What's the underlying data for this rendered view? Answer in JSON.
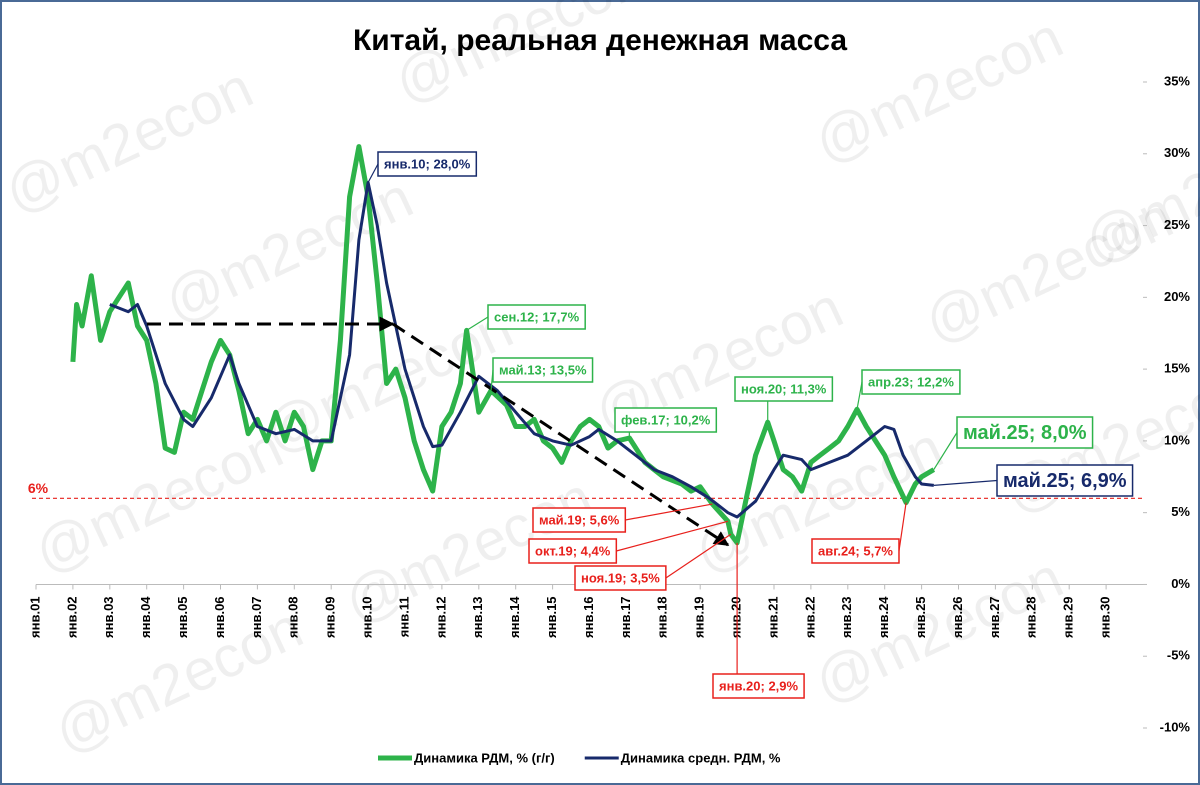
{
  "chart_data": {
    "type": "line",
    "title": "Китай, реальная денежная масса",
    "watermark": "@m2econ",
    "xlim": [
      2001,
      2031
    ],
    "xticks": [
      {
        "value": 2001,
        "label": "янв.01"
      },
      {
        "value": 2002,
        "label": "янв.02"
      },
      {
        "value": 2003,
        "label": "янв.03"
      },
      {
        "value": 2004,
        "label": "янв.04"
      },
      {
        "value": 2005,
        "label": "янв.05"
      },
      {
        "value": 2006,
        "label": "янв.06"
      },
      {
        "value": 2007,
        "label": "янв.07"
      },
      {
        "value": 2008,
        "label": "янв.08"
      },
      {
        "value": 2009,
        "label": "янв.09"
      },
      {
        "value": 2010,
        "label": "янв.10"
      },
      {
        "value": 2011,
        "label": "янв.11"
      },
      {
        "value": 2012,
        "label": "янв.12"
      },
      {
        "value": 2013,
        "label": "янв.13"
      },
      {
        "value": 2014,
        "label": "янв.14"
      },
      {
        "value": 2015,
        "label": "янв.15"
      },
      {
        "value": 2016,
        "label": "янв.16"
      },
      {
        "value": 2017,
        "label": "янв.17"
      },
      {
        "value": 2018,
        "label": "янв.18"
      },
      {
        "value": 2019,
        "label": "янв.19"
      },
      {
        "value": 2020,
        "label": "янв.20"
      },
      {
        "value": 2021,
        "label": "янв.21"
      },
      {
        "value": 2022,
        "label": "янв.22"
      },
      {
        "value": 2023,
        "label": "янв.23"
      },
      {
        "value": 2024,
        "label": "янв.24"
      },
      {
        "value": 2025,
        "label": "янв.25"
      },
      {
        "value": 2026,
        "label": "янв.26"
      },
      {
        "value": 2027,
        "label": "янв.27"
      },
      {
        "value": 2028,
        "label": "янв.28"
      },
      {
        "value": 2029,
        "label": "янв.29"
      },
      {
        "value": 2030,
        "label": "янв.30"
      }
    ],
    "ylim": [
      -10,
      35
    ],
    "yticks": [
      {
        "value": -10,
        "label": "-10%"
      },
      {
        "value": -5,
        "label": "-5%"
      },
      {
        "value": 0,
        "label": "0%"
      },
      {
        "value": 5,
        "label": "5%"
      },
      {
        "value": 10,
        "label": "10%"
      },
      {
        "value": 15,
        "label": "15%"
      },
      {
        "value": 20,
        "label": "20%"
      },
      {
        "value": 25,
        "label": "25%"
      },
      {
        "value": 30,
        "label": "30%"
      },
      {
        "value": 35,
        "label": "35%"
      }
    ],
    "reference_line": {
      "value": 6,
      "label": "6%",
      "color": "#e8201c"
    },
    "series": [
      {
        "name": "Динамика РДМ, % (г/г)",
        "color": "#2db34a",
        "x": [
          2002.0,
          2002.1,
          2002.25,
          2002.5,
          2002.75,
          2003.0,
          2003.25,
          2003.5,
          2003.75,
          2004.0,
          2004.25,
          2004.5,
          2004.75,
          2005.0,
          2005.25,
          2005.5,
          2005.75,
          2006.0,
          2006.25,
          2006.5,
          2006.75,
          2007.0,
          2007.25,
          2007.5,
          2007.75,
          2008.0,
          2008.25,
          2008.5,
          2008.75,
          2009.0,
          2009.25,
          2009.5,
          2009.75,
          2010.0,
          2010.25,
          2010.5,
          2010.75,
          2011.0,
          2011.25,
          2011.5,
          2011.75,
          2012.0,
          2012.25,
          2012.5,
          2012.67,
          2013.0,
          2013.33,
          2013.75,
          2014.0,
          2014.25,
          2014.5,
          2014.75,
          2015.0,
          2015.25,
          2015.5,
          2015.75,
          2016.0,
          2016.25,
          2016.5,
          2016.75,
          2017.08,
          2017.5,
          2017.75,
          2018.0,
          2018.5,
          2018.75,
          2019.0,
          2019.33,
          2019.75,
          2019.83,
          2020.0,
          2020.25,
          2020.5,
          2020.83,
          2021.0,
          2021.25,
          2021.5,
          2021.75,
          2022.0,
          2022.25,
          2022.5,
          2022.75,
          2023.0,
          2023.25,
          2023.5,
          2023.75,
          2024.0,
          2024.25,
          2024.58,
          2024.83,
          2025.0,
          2025.33
        ],
        "values": [
          15.5,
          19.5,
          18,
          21.5,
          17,
          19,
          20,
          21,
          18,
          17,
          14,
          9.5,
          9.2,
          12,
          11.5,
          13.5,
          15.5,
          17,
          16,
          13.5,
          10.5,
          11.5,
          10,
          12,
          10,
          12,
          11,
          8,
          10,
          10,
          17,
          27,
          30.5,
          27,
          21,
          14,
          15,
          13,
          10,
          8,
          6.5,
          11,
          12,
          14,
          17.7,
          12,
          13.5,
          12.5,
          11,
          11,
          11.5,
          10,
          9.5,
          8.5,
          10,
          11,
          11.5,
          11,
          9.5,
          10,
          10.2,
          8.5,
          8,
          7.5,
          7,
          6.5,
          6.8,
          5.6,
          4.4,
          3.5,
          2.9,
          6,
          9,
          11.3,
          10,
          8,
          7.5,
          6.5,
          8.5,
          9,
          9.5,
          10,
          11,
          12.2,
          11,
          10,
          9,
          7.5,
          5.7,
          7,
          7.5,
          8.0
        ]
      },
      {
        "name": "Динамика средн. РДМ, %",
        "color": "#172a6b",
        "x": [
          2003.0,
          2003.5,
          2003.75,
          2004.0,
          2004.5,
          2005.0,
          2005.25,
          2005.75,
          2006.0,
          2006.25,
          2006.5,
          2007.0,
          2007.5,
          2008.0,
          2008.5,
          2009.0,
          2009.5,
          2009.75,
          2010.0,
          2010.25,
          2010.5,
          2010.75,
          2011.0,
          2011.5,
          2011.75,
          2012.0,
          2012.5,
          2013.0,
          2013.5,
          2014.0,
          2014.5,
          2015.0,
          2015.5,
          2016.0,
          2016.25,
          2016.75,
          2017.25,
          2017.75,
          2018.25,
          2018.75,
          2019.25,
          2019.75,
          2020.0,
          2020.5,
          2021.0,
          2021.25,
          2021.75,
          2022.0,
          2022.5,
          2023.0,
          2023.5,
          2024.0,
          2024.25,
          2024.5,
          2024.83,
          2025.0,
          2025.33
        ],
        "values": [
          19.5,
          19,
          19.5,
          18,
          14,
          11.5,
          11,
          13,
          14.5,
          16,
          14,
          11,
          10.5,
          10.8,
          10,
          10,
          16,
          24,
          28,
          25,
          21,
          18,
          15,
          11,
          9.6,
          9.7,
          12,
          14.5,
          13.5,
          12,
          10.5,
          10,
          9.7,
          10.3,
          10.8,
          10,
          9,
          8,
          7.5,
          6.8,
          6,
          5,
          4.7,
          5.8,
          8,
          9,
          8.7,
          8,
          8.5,
          9,
          10,
          11,
          10.8,
          9,
          7.5,
          7,
          6.9
        ]
      }
    ],
    "annotations": [
      {
        "text": "янв.10; 28,0%",
        "color": "#172a6b"
      },
      {
        "text": "сен.12; 17,7%",
        "color": "#2db34a"
      },
      {
        "text": "май.13; 13,5%",
        "color": "#2db34a"
      },
      {
        "text": "фев.17; 10,2%",
        "color": "#2db34a"
      },
      {
        "text": "ноя.20; 11,3%",
        "color": "#2db34a"
      },
      {
        "text": "апр.23; 12,2%",
        "color": "#2db34a"
      },
      {
        "text": "май.25; 8,0%",
        "color": "#2db34a"
      },
      {
        "text": "май.25; 6,9%",
        "color": "#172a6b"
      },
      {
        "text": "май.19; 5,6%",
        "color": "#e8201c"
      },
      {
        "text": "окт.19; 4,4%",
        "color": "#e8201c"
      },
      {
        "text": "ноя.19; 3,5%",
        "color": "#e8201c"
      },
      {
        "text": "янв.20; 2,9%",
        "color": "#e8201c"
      },
      {
        "text": "авг.24; 5,7%",
        "color": "#e8201c"
      }
    ]
  }
}
